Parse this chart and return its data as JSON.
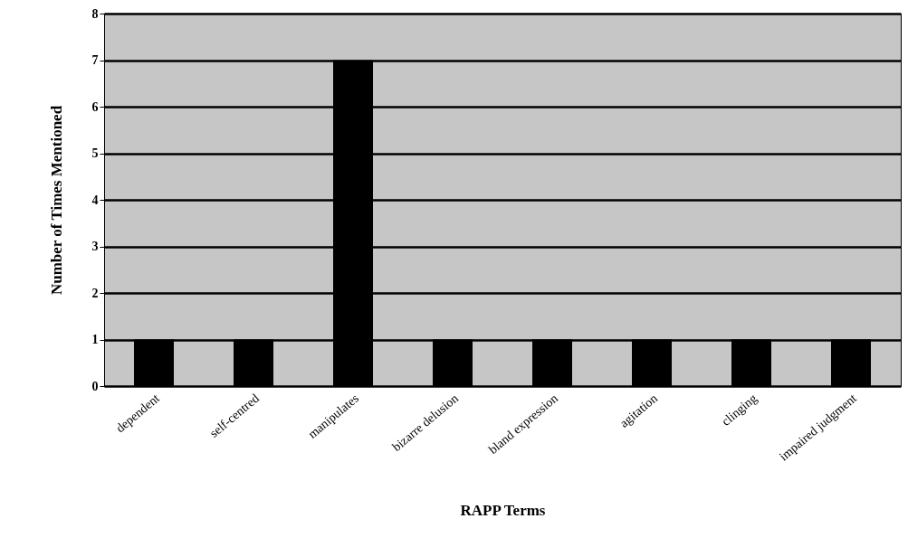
{
  "chart_data": {
    "type": "bar",
    "xlabel": "RAPP Terms",
    "ylabel": "Number of Times Mentioned",
    "categories": [
      "dependent",
      "self-centred",
      "manipulates",
      "bizarre delusion",
      "bland expression",
      "agitation",
      "clinging",
      "impaired judgment"
    ],
    "values": [
      1,
      1,
      7,
      1,
      1,
      1,
      1,
      1
    ],
    "color": "#000000",
    "ylim": [
      0,
      8
    ],
    "yticks": [
      0,
      1,
      2,
      3,
      4,
      5,
      6,
      7,
      8
    ],
    "grid": "y"
  }
}
